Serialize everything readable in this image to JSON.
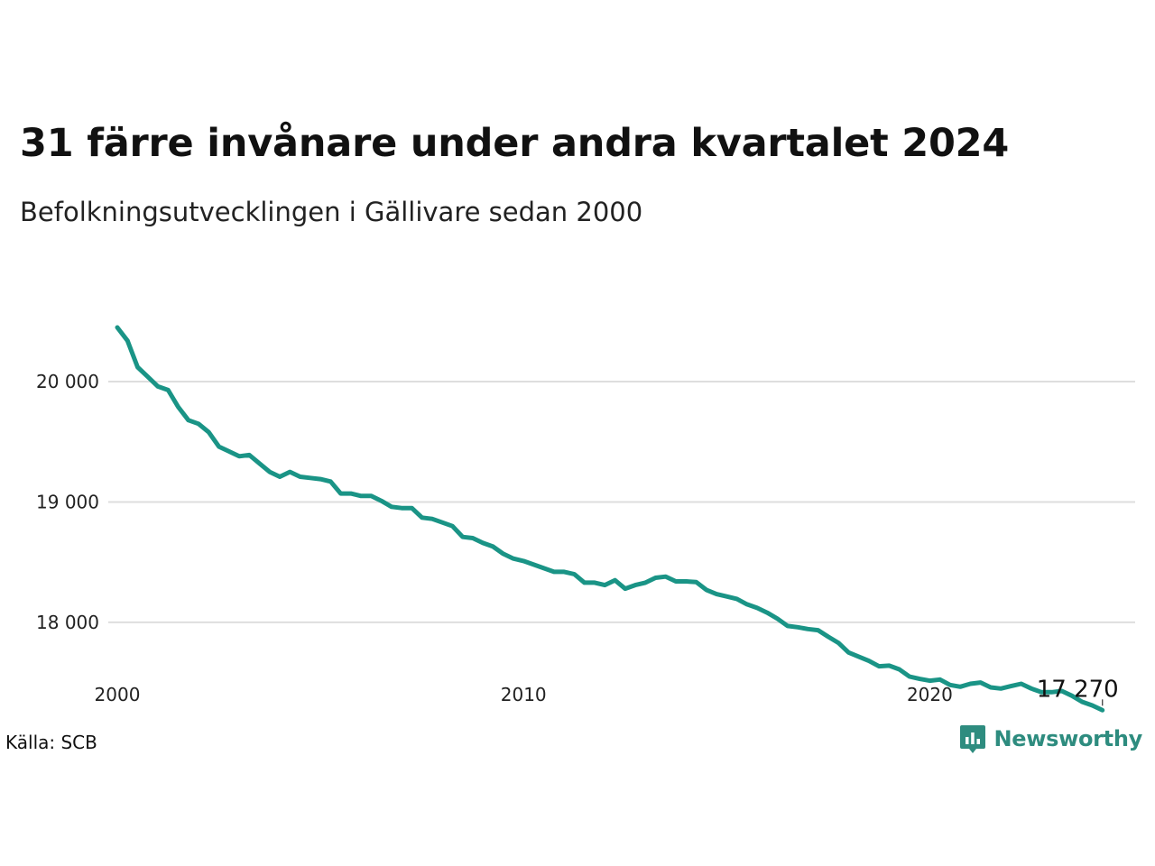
{
  "header": {
    "title": "31 färre invånare under andra kvartalet 2024",
    "subtitle": "Befolkningsutvecklingen i Gällivare sedan 2000"
  },
  "footer": {
    "source": "Källa: SCB",
    "brand": "Newsworthy"
  },
  "colors": {
    "line": "#1a9486",
    "brand": "#2e8c7f"
  },
  "chart_data": {
    "type": "line",
    "title": "31 färre invånare under andra kvartalet 2024",
    "subtitle": "Befolkningsutvecklingen i Gällivare sedan 2000",
    "xlabel": "",
    "ylabel": "",
    "xlim": [
      2000,
      2024.5
    ],
    "ylim": [
      17100,
      20600
    ],
    "grid": "horizontal",
    "legend": "none",
    "x_ticks": [
      {
        "value": 2000,
        "label": "2000"
      },
      {
        "value": 2010,
        "label": "2010"
      },
      {
        "value": 2020,
        "label": "2020"
      }
    ],
    "y_ticks": [
      {
        "value": 18000,
        "label": "18 000"
      },
      {
        "value": 19000,
        "label": "19 000"
      },
      {
        "value": 20000,
        "label": "20 000"
      }
    ],
    "end_label": {
      "x": 2024.25,
      "value": 17270,
      "label": "17 270"
    },
    "series": [
      {
        "x": [
          2000.0,
          2000.25,
          2000.5,
          2000.75,
          2001.0,
          2001.25,
          2001.5,
          2001.75,
          2002.0,
          2002.25,
          2002.5,
          2002.75,
          2003.0,
          2003.25,
          2003.5,
          2003.75,
          2004.0,
          2004.25,
          2004.5,
          2004.75,
          2005.0,
          2005.25,
          2005.5,
          2005.75,
          2006.0,
          2006.25,
          2006.5,
          2006.75,
          2007.0,
          2007.25,
          2007.5,
          2007.75,
          2008.0,
          2008.25,
          2008.5,
          2008.75,
          2009.0,
          2009.25,
          2009.5,
          2009.75,
          2010.0,
          2010.25,
          2010.5,
          2010.75,
          2011.0,
          2011.25,
          2011.5,
          2011.75,
          2012.0,
          2012.25,
          2012.5,
          2012.75,
          2013.0,
          2013.25,
          2013.5,
          2013.75,
          2014.0,
          2014.25,
          2014.5,
          2014.75,
          2015.0,
          2015.25,
          2015.5,
          2015.75,
          2016.0,
          2016.25,
          2016.5,
          2016.75,
          2017.0,
          2017.25,
          2017.5,
          2017.75,
          2018.0,
          2018.25,
          2018.5,
          2018.75,
          2019.0,
          2019.25,
          2019.5,
          2019.75,
          2020.0,
          2020.25,
          2020.5,
          2020.75,
          2021.0,
          2021.25,
          2021.5,
          2021.75,
          2022.0,
          2022.25,
          2022.5,
          2022.75,
          2023.0,
          2023.25,
          2023.5,
          2023.75,
          2024.0,
          2024.25
        ],
        "values": [
          20450,
          20340,
          20120,
          20040,
          19960,
          19930,
          19790,
          19680,
          19650,
          19580,
          19460,
          19420,
          19380,
          19390,
          19320,
          19250,
          19210,
          19250,
          19210,
          19200,
          19190,
          19170,
          19070,
          19070,
          19050,
          19050,
          19010,
          18960,
          18950,
          18950,
          18870,
          18860,
          18830,
          18800,
          18710,
          18700,
          18660,
          18630,
          18570,
          18530,
          18510,
          18480,
          18450,
          18420,
          18420,
          18400,
          18330,
          18330,
          18310,
          18350,
          18280,
          18310,
          18330,
          18370,
          18380,
          18340,
          18340,
          18335,
          18270,
          18235,
          18215,
          18195,
          18150,
          18120,
          18080,
          18030,
          17970,
          17960,
          17945,
          17935,
          17880,
          17830,
          17750,
          17715,
          17680,
          17635,
          17640,
          17610,
          17550,
          17530,
          17515,
          17525,
          17480,
          17465,
          17490,
          17500,
          17460,
          17450,
          17470,
          17490,
          17450,
          17420,
          17420,
          17430,
          17390,
          17340,
          17310,
          17270
        ]
      }
    ]
  }
}
